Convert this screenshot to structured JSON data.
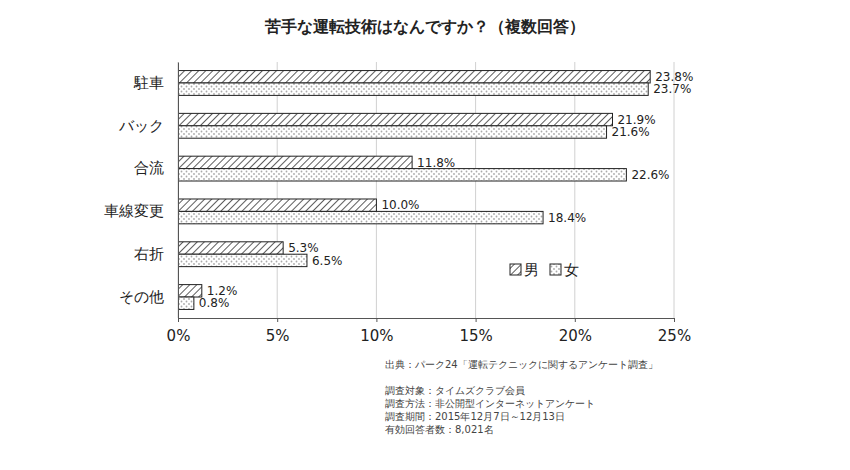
{
  "chart_data": {
    "type": "bar",
    "orientation": "horizontal",
    "title": "苦手な運転技術はなんですか？（複数回答）",
    "categories": [
      "駐車",
      "バック",
      "合流",
      "車線変更",
      "右折",
      "その他"
    ],
    "series": [
      {
        "name": "男",
        "color": "#333333",
        "values": [
          23.8,
          21.9,
          11.8,
          10.0,
          5.3,
          1.2
        ],
        "value_labels": [
          "23.8%",
          "21.9%",
          "11.8%",
          "10.0%",
          "5.3%",
          "1.2%"
        ]
      },
      {
        "name": "女",
        "color": "#aaaaaa",
        "values": [
          23.7,
          21.6,
          22.6,
          18.4,
          6.5,
          0.8
        ],
        "value_labels": [
          "23.7%",
          "21.6%",
          "22.6%",
          "18.4%",
          "6.5%",
          "0.8%"
        ]
      }
    ],
    "xlim": [
      0,
      25
    ],
    "xticks": [
      {
        "value": 0,
        "label": "0%"
      },
      {
        "value": 5,
        "label": "5%"
      },
      {
        "value": 10,
        "label": "10%"
      },
      {
        "value": 15,
        "label": "15%"
      },
      {
        "value": 20,
        "label": "20%"
      },
      {
        "value": 25,
        "label": "25%"
      }
    ],
    "grid": true,
    "legend": "lower-right",
    "data_labels": true,
    "annotations": [
      "出典：パーク24「運転テクニックに関するアンケート調査」",
      "調査対象：タイムズクラブ会員",
      "調査方法：非公開型インターネットアンケート",
      "調査期間：2015年12月7日～12月13日",
      "有効回答者数：8,021名"
    ]
  }
}
